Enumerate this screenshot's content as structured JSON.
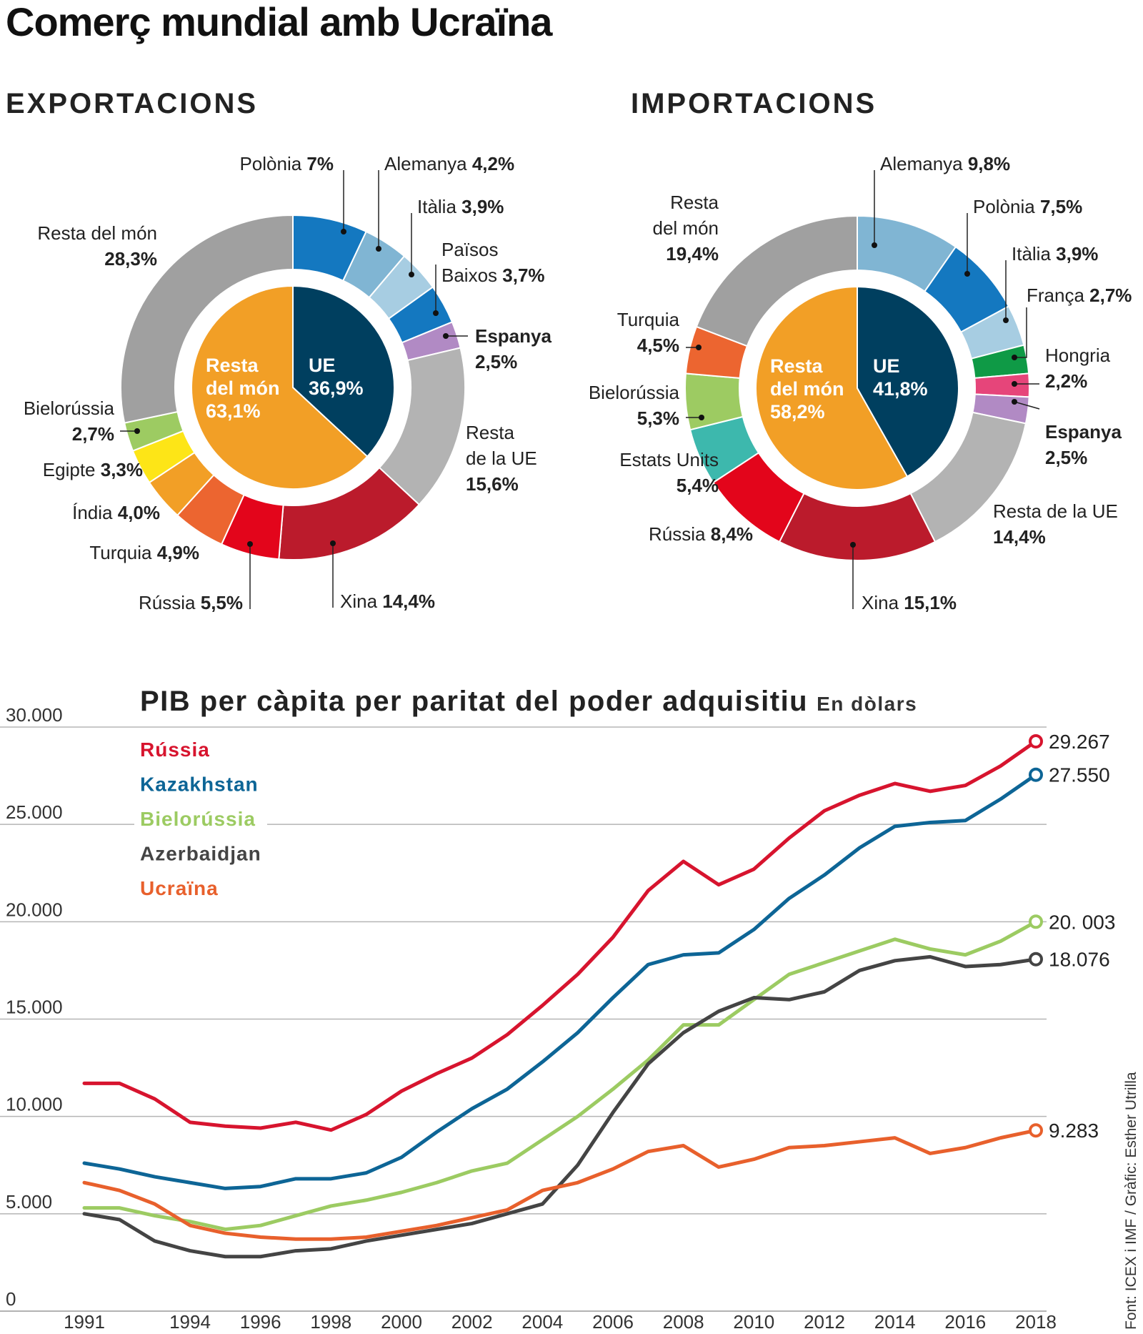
{
  "title": "Comerç mundial amb Ucraïna",
  "exports": {
    "heading": "EXPORTACIONS",
    "inner": [
      {
        "label": "UE",
        "value_text": "36,9%",
        "value": 36.9,
        "color": "#003f5f"
      },
      {
        "label": "Resta del món",
        "value_text": "63,1%",
        "value": 63.1,
        "color": "#f29f26"
      }
    ],
    "outer": [
      {
        "name": "Polònia",
        "value_text": "7%",
        "value": 7.0,
        "color": "#1478c0"
      },
      {
        "name": "Alemanya",
        "value_text": "4,2%",
        "value": 4.2,
        "color": "#80b5d3"
      },
      {
        "name": "Itàlia",
        "value_text": "3,9%",
        "value": 3.9,
        "color": "#a7cde2"
      },
      {
        "name": "Països Baixos",
        "value_text": "3,7%",
        "value": 3.7,
        "color": "#1478c0"
      },
      {
        "name": "Espanya",
        "value_text": "2,5%",
        "value": 2.5,
        "color": "#b18ac4"
      },
      {
        "name": "Resta de la UE",
        "value_text": "15,6%",
        "value": 15.6,
        "color": "#b3b3b3"
      },
      {
        "name": "Xina",
        "value_text": "14,4%",
        "value": 14.4,
        "color": "#bb1b2c"
      },
      {
        "name": "Rússia",
        "value_text": "5,5%",
        "value": 5.5,
        "color": "#e3051b"
      },
      {
        "name": "Turquia",
        "value_text": "4,9%",
        "value": 4.9,
        "color": "#ec6530"
      },
      {
        "name": "Índia",
        "value_text": "4,0%",
        "value": 4.0,
        "color": "#f29f26"
      },
      {
        "name": "Egipte",
        "value_text": "3,3%",
        "value": 3.3,
        "color": "#fde517"
      },
      {
        "name": "Bielorússia",
        "value_text": "2,7%",
        "value": 2.7,
        "color": "#9dcb62"
      },
      {
        "name": "Resta del món",
        "value_text": "28,3%",
        "value": 28.3,
        "color": "#a0a0a0"
      }
    ]
  },
  "imports": {
    "heading": "IMPORTACIONS",
    "inner": [
      {
        "label": "UE",
        "value_text": "41,8%",
        "value": 41.8,
        "color": "#003f5f"
      },
      {
        "label": "Resta del món",
        "value_text": "58,2%",
        "value": 58.2,
        "color": "#f29f26"
      }
    ],
    "outer": [
      {
        "name": "Alemanya",
        "value_text": "9,8%",
        "value": 9.8,
        "color": "#80b5d3"
      },
      {
        "name": "Polònia",
        "value_text": "7,5%",
        "value": 7.5,
        "color": "#1478c0"
      },
      {
        "name": "Itàlia",
        "value_text": "3,9%",
        "value": 3.9,
        "color": "#a7cde2"
      },
      {
        "name": "França",
        "value_text": "2,7%",
        "value": 2.7,
        "color": "#0f9a46"
      },
      {
        "name": "Hongria",
        "value_text": "2,2%",
        "value": 2.2,
        "color": "#e6457a"
      },
      {
        "name": "Espanya",
        "value_text": "2,5%",
        "value": 2.5,
        "color": "#b18ac4"
      },
      {
        "name": "Resta de la UE",
        "value_text": "14,4%",
        "value": 14.4,
        "color": "#b3b3b3"
      },
      {
        "name": "Xina",
        "value_text": "15,1%",
        "value": 15.1,
        "color": "#bb1b2c"
      },
      {
        "name": "Rússia",
        "value_text": "8,4%",
        "value": 8.4,
        "color": "#e3051b"
      },
      {
        "name": "Estats Units",
        "value_text": "5,4%",
        "value": 5.4,
        "color": "#3db8ad"
      },
      {
        "name": "Bielorússia",
        "value_text": "5,3%",
        "value": 5.3,
        "color": "#9dcb62"
      },
      {
        "name": "Turquia",
        "value_text": "4,5%",
        "value": 4.5,
        "color": "#ec6530"
      },
      {
        "name": "Resta del món",
        "value_text": "19,4%",
        "value": 19.4,
        "color": "#a0a0a0"
      }
    ]
  },
  "chart_data": {
    "type": "line",
    "title": "PIB per càpita per paritat del poder adquisitiu",
    "subtitle": "En dòlars",
    "ylim": [
      0,
      30000
    ],
    "ytick_labels": [
      "0",
      "5.000",
      "10.000",
      "15.000",
      "20.000",
      "25.000",
      "30.000"
    ],
    "xtick_labels": [
      "1991",
      "1994",
      "1996",
      "1998",
      "2000",
      "2002",
      "2004",
      "2006",
      "2008",
      "2010",
      "2012",
      "2014",
      "2016",
      "2018"
    ],
    "x": [
      1991,
      1992,
      1993,
      1994,
      1995,
      1996,
      1997,
      1998,
      1999,
      2000,
      2001,
      2002,
      2003,
      2004,
      2005,
      2006,
      2007,
      2008,
      2009,
      2010,
      2011,
      2012,
      2013,
      2014,
      2015,
      2016,
      2017,
      2018
    ],
    "series": [
      {
        "name": "Rússia",
        "color": "#d7142e",
        "end_label": "29.267",
        "values": [
          11700,
          11700,
          10900,
          9700,
          9500,
          9400,
          9700,
          9300,
          10100,
          11300,
          12200,
          13000,
          14200,
          15700,
          17300,
          19200,
          21600,
          23100,
          21900,
          22700,
          24300,
          25700,
          26500,
          27100,
          26700,
          27000,
          28000,
          29267
        ]
      },
      {
        "name": "Kazakhstan",
        "color": "#0d6596",
        "end_label": "27.550",
        "values": [
          7600,
          7300,
          6900,
          6600,
          6300,
          6400,
          6800,
          6800,
          7100,
          7900,
          9200,
          10400,
          11400,
          12800,
          14300,
          16100,
          17800,
          18300,
          18400,
          19600,
          21200,
          22400,
          23800,
          24900,
          25100,
          25200,
          26300,
          27550
        ]
      },
      {
        "name": "Bielorússia",
        "color": "#9ccb62",
        "end_label": "20. 003",
        "values": [
          5300,
          5300,
          4900,
          4600,
          4200,
          4400,
          4900,
          5400,
          5700,
          6100,
          6600,
          7200,
          7600,
          8800,
          10000,
          11400,
          12900,
          14700,
          14700,
          16000,
          17300,
          17900,
          18500,
          19100,
          18600,
          18300,
          19000,
          20003
        ]
      },
      {
        "name": "Azerbaidjan",
        "color": "#444444",
        "end_label": "18.076",
        "values": [
          5000,
          4700,
          3600,
          3100,
          2800,
          2800,
          3100,
          3200,
          3600,
          3900,
          4200,
          4500,
          5000,
          5500,
          7500,
          10200,
          12700,
          14300,
          15400,
          16100,
          16000,
          16400,
          17500,
          18000,
          18200,
          17700,
          17800,
          18076
        ]
      },
      {
        "name": "Ucraïna",
        "color": "#e8602c",
        "end_label": "9.283",
        "values": [
          6600,
          6200,
          5500,
          4400,
          4000,
          3800,
          3700,
          3700,
          3800,
          4100,
          4400,
          4800,
          5200,
          6200,
          6600,
          7300,
          8200,
          8500,
          7400,
          7800,
          8400,
          8500,
          8700,
          8900,
          8100,
          8400,
          8900,
          9283
        ]
      }
    ]
  },
  "line_chart": {
    "title": "PIB per càpita per paritat del poder adquisitiu",
    "subtitle": "En dòlars"
  },
  "credit": "Font: ICEX i IMF / Gràfic: Esther Utrilla"
}
